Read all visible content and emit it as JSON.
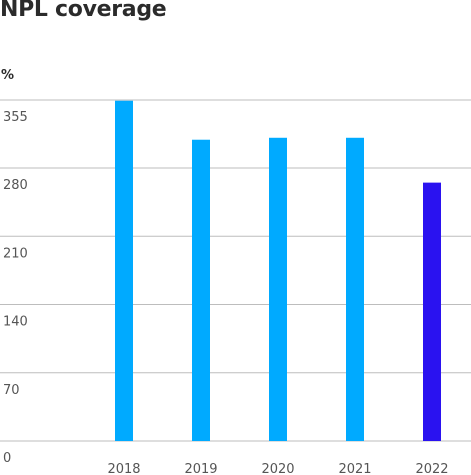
{
  "title": "NPL coverage",
  "unit": "%",
  "chart_data": {
    "type": "bar",
    "title": "NPL coverage",
    "ylabel": "%",
    "categories": [
      "2018",
      "2019",
      "2020",
      "2021",
      "2022"
    ],
    "values": [
      349,
      309,
      311,
      311,
      265
    ],
    "ylim": [
      0,
      350
    ],
    "yticks": [
      0,
      70,
      140,
      210,
      280,
      355
    ],
    "grid": true,
    "bar_colors": [
      "#00aaff",
      "#00aaff",
      "#00aaff",
      "#00aaff",
      "#2a12f0"
    ],
    "gridline_color": "#bdbdbd"
  }
}
